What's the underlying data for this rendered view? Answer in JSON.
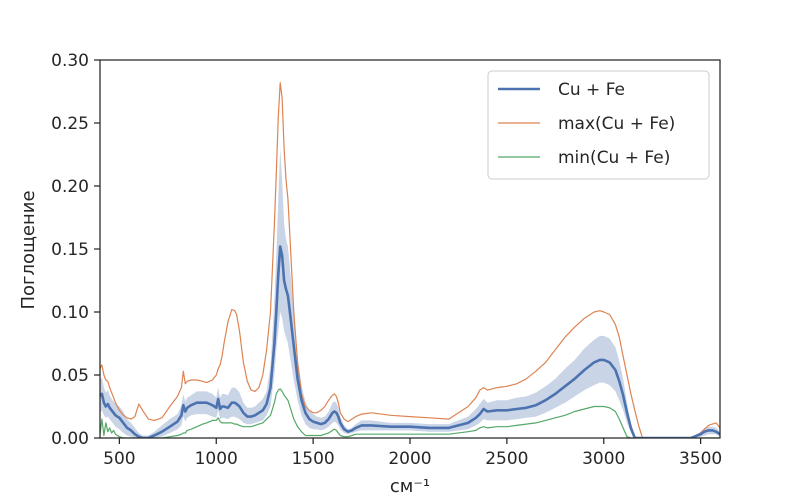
{
  "chart_data": {
    "type": "line",
    "xlabel": "см⁻¹",
    "ylabel": "Поглощение",
    "xlim": [
      400,
      3600
    ],
    "ylim": [
      0,
      0.3
    ],
    "xticks": [
      "500",
      "1000",
      "1500",
      "2000",
      "2500",
      "3000",
      "3500"
    ],
    "yticks": [
      "0.00",
      "0.05",
      "0.10",
      "0.15",
      "0.20",
      "0.25",
      "0.30"
    ],
    "grid": false,
    "legend": {
      "position": "top-right",
      "entries": [
        "Cu + Fe",
        "max(Cu + Fe)",
        "min(Cu + Fe)"
      ]
    },
    "colors": {
      "mean": "#4c72b0",
      "band": "#4c72b0",
      "max": "#dd8452",
      "min": "#55a868",
      "axis": "#262626"
    },
    "x": [
      400,
      410,
      420,
      430,
      440,
      450,
      460,
      470,
      480,
      490,
      500,
      520,
      540,
      560,
      580,
      600,
      620,
      650,
      680,
      720,
      760,
      800,
      820,
      830,
      840,
      850,
      870,
      900,
      930,
      950,
      980,
      1000,
      1010,
      1020,
      1030,
      1040,
      1060,
      1080,
      1095,
      1105,
      1120,
      1140,
      1160,
      1180,
      1200,
      1220,
      1240,
      1260,
      1280,
      1300,
      1310,
      1320,
      1330,
      1340,
      1350,
      1360,
      1370,
      1380,
      1400,
      1420,
      1440,
      1460,
      1480,
      1500,
      1520,
      1540,
      1560,
      1580,
      1600,
      1610,
      1620,
      1630,
      1640,
      1660,
      1680,
      1700,
      1720,
      1750,
      1800,
      1900,
      2000,
      2100,
      2200,
      2300,
      2340,
      2360,
      2380,
      2400,
      2450,
      2500,
      2550,
      2600,
      2650,
      2700,
      2750,
      2800,
      2850,
      2900,
      2950,
      2980,
      3000,
      3030,
      3060,
      3080,
      3100,
      3120,
      3140,
      3160,
      3180,
      3200,
      3250,
      3300,
      3400,
      3450,
      3500,
      3520,
      3540,
      3560,
      3580,
      3600
    ],
    "series": [
      {
        "name": "Cu + Fe",
        "values": [
          0.033,
          0.035,
          0.028,
          0.025,
          0.027,
          0.024,
          0.022,
          0.02,
          0.018,
          0.017,
          0.016,
          0.012,
          0.008,
          0.006,
          0.003,
          0.001,
          0,
          0,
          0.002,
          0.005,
          0.009,
          0.013,
          0.018,
          0.026,
          0.021,
          0.024,
          0.026,
          0.028,
          0.028,
          0.028,
          0.026,
          0.024,
          0.031,
          0.023,
          0.025,
          0.025,
          0.024,
          0.028,
          0.028,
          0.027,
          0.025,
          0.02,
          0.017,
          0.017,
          0.018,
          0.02,
          0.022,
          0.027,
          0.04,
          0.075,
          0.1,
          0.13,
          0.152,
          0.145,
          0.125,
          0.118,
          0.113,
          0.1,
          0.073,
          0.047,
          0.03,
          0.02,
          0.015,
          0.013,
          0.012,
          0.011,
          0.012,
          0.015,
          0.02,
          0.021,
          0.02,
          0.017,
          0.012,
          0.007,
          0.005,
          0.006,
          0.008,
          0.01,
          0.01,
          0.009,
          0.009,
          0.008,
          0.008,
          0.012,
          0.016,
          0.019,
          0.023,
          0.021,
          0.022,
          0.022,
          0.023,
          0.024,
          0.026,
          0.03,
          0.035,
          0.041,
          0.047,
          0.054,
          0.06,
          0.062,
          0.062,
          0.06,
          0.054,
          0.045,
          0.034,
          0.02,
          0.008,
          0,
          0,
          0,
          0,
          0,
          0,
          0,
          0.003,
          0.005,
          0.006,
          0.006,
          0.005,
          0.003
        ]
      },
      {
        "name": "max(Cu + Fe)",
        "values": [
          0.055,
          0.058,
          0.05,
          0.046,
          0.045,
          0.04,
          0.036,
          0.032,
          0.028,
          0.025,
          0.022,
          0.018,
          0.016,
          0.015,
          0.017,
          0.027,
          0.022,
          0.015,
          0.014,
          0.016,
          0.025,
          0.033,
          0.04,
          0.053,
          0.043,
          0.045,
          0.046,
          0.046,
          0.045,
          0.044,
          0.046,
          0.05,
          0.055,
          0.058,
          0.065,
          0.075,
          0.092,
          0.102,
          0.101,
          0.098,
          0.085,
          0.06,
          0.045,
          0.038,
          0.037,
          0.04,
          0.05,
          0.07,
          0.1,
          0.17,
          0.21,
          0.255,
          0.282,
          0.27,
          0.23,
          0.205,
          0.19,
          0.16,
          0.1,
          0.06,
          0.035,
          0.025,
          0.022,
          0.02,
          0.02,
          0.022,
          0.025,
          0.03,
          0.034,
          0.035,
          0.033,
          0.028,
          0.02,
          0.015,
          0.013,
          0.015,
          0.017,
          0.019,
          0.02,
          0.018,
          0.017,
          0.016,
          0.015,
          0.025,
          0.032,
          0.038,
          0.04,
          0.038,
          0.04,
          0.041,
          0.043,
          0.047,
          0.053,
          0.06,
          0.07,
          0.08,
          0.088,
          0.095,
          0.1,
          0.101,
          0.1,
          0.098,
          0.09,
          0.08,
          0.065,
          0.05,
          0.035,
          0.022,
          0.01,
          0,
          0,
          0,
          0,
          0,
          0.004,
          0.007,
          0.01,
          0.011,
          0.012,
          0.008
        ]
      },
      {
        "name": "min(Cu + Fe)",
        "values": [
          0.003,
          0.015,
          0.002,
          0.012,
          0.005,
          0.008,
          0.004,
          0.006,
          0.003,
          0.002,
          0.001,
          0,
          0,
          0,
          0,
          0,
          0,
          0,
          0,
          0,
          0.001,
          0.002,
          0.003,
          0.004,
          0.004,
          0.006,
          0.007,
          0.009,
          0.011,
          0.012,
          0.014,
          0.014,
          0.016,
          0.013,
          0.012,
          0.012,
          0.012,
          0.012,
          0.011,
          0.011,
          0.01,
          0.009,
          0.009,
          0.009,
          0.01,
          0.011,
          0.012,
          0.015,
          0.018,
          0.028,
          0.035,
          0.038,
          0.039,
          0.037,
          0.034,
          0.032,
          0.03,
          0.025,
          0.015,
          0.009,
          0.005,
          0.002,
          0.002,
          0.002,
          0.002,
          0.002,
          0.003,
          0.004,
          0.006,
          0.007,
          0.006,
          0.004,
          0.002,
          0.001,
          0.001,
          0.002,
          0.003,
          0.003,
          0.003,
          0.003,
          0.003,
          0.003,
          0.003,
          0.005,
          0.006,
          0.008,
          0.009,
          0.008,
          0.009,
          0.009,
          0.01,
          0.011,
          0.012,
          0.014,
          0.016,
          0.018,
          0.021,
          0.023,
          0.025,
          0.025,
          0.025,
          0.024,
          0.021,
          0.015,
          0.008,
          0.001,
          0,
          0,
          0,
          0,
          0,
          0,
          0,
          0,
          0,
          0,
          0,
          0,
          0,
          0
        ]
      },
      {
        "name": "",
        "values": [
          0.02,
          0.022,
          0.018,
          0.016,
          0.017,
          0.015,
          0.013,
          0.011,
          0.009,
          0.008,
          0.007,
          0.004,
          0.002,
          0.001,
          0,
          0,
          0,
          0,
          0,
          0.001,
          0.004,
          0.007,
          0.01,
          0.017,
          0.013,
          0.016,
          0.018,
          0.019,
          0.019,
          0.019,
          0.017,
          0.016,
          0.022,
          0.015,
          0.016,
          0.016,
          0.015,
          0.017,
          0.017,
          0.016,
          0.015,
          0.012,
          0.011,
          0.011,
          0.012,
          0.013,
          0.014,
          0.018,
          0.025,
          0.05,
          0.07,
          0.085,
          0.1,
          0.095,
          0.085,
          0.08,
          0.075,
          0.065,
          0.046,
          0.03,
          0.018,
          0.011,
          0.008,
          0.007,
          0.007,
          0.006,
          0.007,
          0.009,
          0.012,
          0.013,
          0.012,
          0.01,
          0.007,
          0.004,
          0.003,
          0.004,
          0.005,
          0.006,
          0.006,
          0.006,
          0.006,
          0.005,
          0.005,
          0.007,
          0.01,
          0.012,
          0.015,
          0.014,
          0.014,
          0.014,
          0.015,
          0.016,
          0.017,
          0.02,
          0.024,
          0.028,
          0.033,
          0.038,
          0.042,
          0.044,
          0.044,
          0.042,
          0.037,
          0.03,
          0.022,
          0.012,
          0.004,
          0,
          0,
          0,
          0,
          0,
          0,
          0,
          0.001,
          0.002,
          0.003,
          0.003,
          0.003,
          0.001
        ]
      },
      {
        "name": "",
        "values": [
          0.046,
          0.048,
          0.04,
          0.036,
          0.038,
          0.034,
          0.031,
          0.029,
          0.027,
          0.026,
          0.025,
          0.021,
          0.015,
          0.012,
          0.008,
          0.004,
          0.002,
          0.002,
          0.005,
          0.01,
          0.015,
          0.019,
          0.026,
          0.035,
          0.029,
          0.032,
          0.034,
          0.037,
          0.037,
          0.037,
          0.035,
          0.032,
          0.04,
          0.032,
          0.035,
          0.035,
          0.034,
          0.04,
          0.04,
          0.039,
          0.036,
          0.028,
          0.024,
          0.024,
          0.025,
          0.028,
          0.031,
          0.037,
          0.057,
          0.11,
          0.145,
          0.19,
          0.23,
          0.205,
          0.17,
          0.158,
          0.152,
          0.135,
          0.1,
          0.064,
          0.042,
          0.029,
          0.022,
          0.019,
          0.017,
          0.016,
          0.017,
          0.021,
          0.028,
          0.029,
          0.028,
          0.024,
          0.017,
          0.01,
          0.007,
          0.008,
          0.011,
          0.014,
          0.014,
          0.012,
          0.012,
          0.011,
          0.011,
          0.017,
          0.023,
          0.027,
          0.031,
          0.028,
          0.03,
          0.03,
          0.032,
          0.033,
          0.036,
          0.041,
          0.047,
          0.055,
          0.062,
          0.071,
          0.078,
          0.081,
          0.081,
          0.079,
          0.072,
          0.061,
          0.047,
          0.028,
          0.012,
          0,
          0,
          0,
          0,
          0,
          0,
          0,
          0.005,
          0.008,
          0.009,
          0.009,
          0.008,
          0.005
        ]
      }
    ]
  }
}
